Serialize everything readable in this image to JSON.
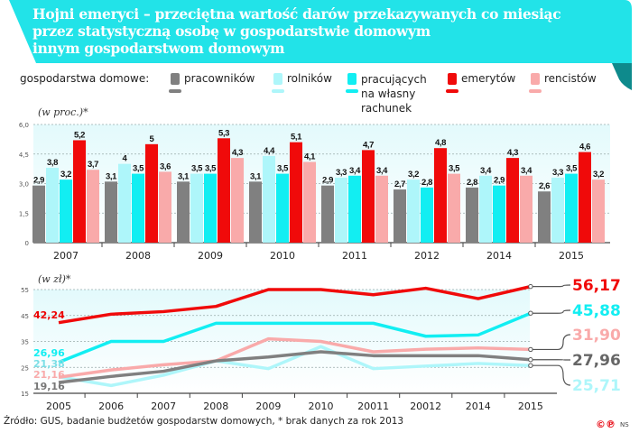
{
  "title": {
    "line1": "Hojni emeryci – przeciętna wartość darów przekazywanych co miesiąc",
    "line2": "przez statystyczną osobę w gospodarstwie domowym",
    "line3": "innym gospodarstwom domowym"
  },
  "legend": {
    "label": "gospodarstwa domowe:",
    "items": [
      {
        "name": "pracowników",
        "color": "#808080"
      },
      {
        "name": "rolników",
        "color": "#aef6fa"
      },
      {
        "name": "pracujących na własny rachunek",
        "line1": "pracujących",
        "line2": "na własny",
        "line3": "rachunek",
        "color": "#12eef2"
      },
      {
        "name": "emerytów",
        "color": "#f00a0a"
      },
      {
        "name": "rencistów",
        "color": "#f9aaaa"
      }
    ]
  },
  "colors": {
    "banner": "#22e3e8",
    "banner_dark": "#0e8a8c",
    "plot_bg": "#ecfcfd"
  },
  "chart_data": [
    {
      "type": "bar",
      "unit_label": "(w proc.)*",
      "categories": [
        "2007",
        "2008",
        "2009",
        "2010",
        "2011",
        "2012",
        "2014",
        "2015"
      ],
      "ylim": [
        0,
        6.0
      ],
      "yticks": [
        "0",
        "1,5",
        "3,0",
        "4,5",
        "6,0"
      ],
      "ytick_values": [
        0,
        1.5,
        3.0,
        4.5,
        6.0
      ],
      "grid": true,
      "series": [
        {
          "name": "pracowników",
          "values": [
            2.9,
            3.1,
            3.1,
            3.1,
            2.9,
            2.7,
            2.8,
            2.6
          ],
          "labels": [
            "2,9",
            "3,1",
            "3,1",
            "3,1",
            "2,9",
            "2,7",
            "2,8",
            "2,6"
          ]
        },
        {
          "name": "rolników",
          "values": [
            3.8,
            4,
            3.5,
            4.4,
            3.3,
            3.2,
            3.4,
            3.3
          ],
          "labels": [
            "3,8",
            "4",
            "3,5",
            "4,4",
            "3,3",
            "3,2",
            "3,4",
            "3,3"
          ]
        },
        {
          "name": "pracujących na własny rachunek",
          "values": [
            3.2,
            3.5,
            3.5,
            3.5,
            3.4,
            2.8,
            2.9,
            3.5
          ],
          "labels": [
            "3,2",
            "3,5",
            "3,5",
            "3,5",
            "3,4",
            "2,8",
            "2,9",
            "3,5"
          ]
        },
        {
          "name": "emerytów",
          "values": [
            5.2,
            5,
            5.3,
            5.1,
            4.7,
            4.8,
            4.3,
            4.6
          ],
          "labels": [
            "5,2",
            "5",
            "5,3",
            "5,1",
            "4,7",
            "4,8",
            "4,3",
            "4,6"
          ]
        },
        {
          "name": "rencistów",
          "values": [
            3.7,
            3.6,
            4.3,
            4.1,
            3.4,
            3.5,
            3.4,
            3.2
          ],
          "labels": [
            "3,7",
            "3,6",
            "4,3",
            "4,1",
            "3,4",
            "3,5",
            "3,4",
            "3,2"
          ]
        }
      ]
    },
    {
      "type": "line",
      "unit_label": "(w zł)*",
      "categories": [
        "2005",
        "2006",
        "2007",
        "2008",
        "2009",
        "2010",
        "20011",
        "20012",
        "2014",
        "2015"
      ],
      "ylim": [
        15,
        55
      ],
      "yticks": [
        "15",
        "25",
        "35",
        "45",
        "55"
      ],
      "ytick_values": [
        15,
        25,
        35,
        45,
        55
      ],
      "grid": true,
      "series": [
        {
          "name": "emerytów",
          "values": [
            42.24,
            45.5,
            46.5,
            48.5,
            55,
            55,
            53,
            55.5,
            51.5,
            56.17
          ],
          "start_label": "42,24",
          "end_label": "56,17"
        },
        {
          "name": "pracujących na własny rachunek",
          "values": [
            26.96,
            35,
            35,
            42,
            42,
            42,
            42,
            37,
            37.5,
            45.88
          ],
          "start_label": "26,96",
          "end_label": "45,88"
        },
        {
          "name": "rencistów",
          "values": [
            21.16,
            24,
            26,
            27.5,
            36,
            35,
            31,
            32,
            32.5,
            31.9
          ],
          "start_label": "21,16",
          "end_label": "31,90"
        },
        {
          "name": "pracowników",
          "values": [
            19.16,
            21.5,
            23.5,
            27.5,
            29,
            31,
            29.5,
            29.5,
            29.5,
            27.96
          ],
          "start_label": "19,16",
          "end_label": "27,96"
        },
        {
          "name": "rolników",
          "values": [
            21.38,
            18,
            22,
            27.5,
            24.5,
            33,
            24.5,
            25.5,
            26.5,
            25.71
          ],
          "start_label": "21,38",
          "end_label": "25,71"
        }
      ]
    }
  ],
  "footer": {
    "source": "Źródło: GUS, badanie budżetów gospodarstw domowych, * brak danych za rok 2013",
    "logo": "©℗",
    "author": "NS"
  }
}
